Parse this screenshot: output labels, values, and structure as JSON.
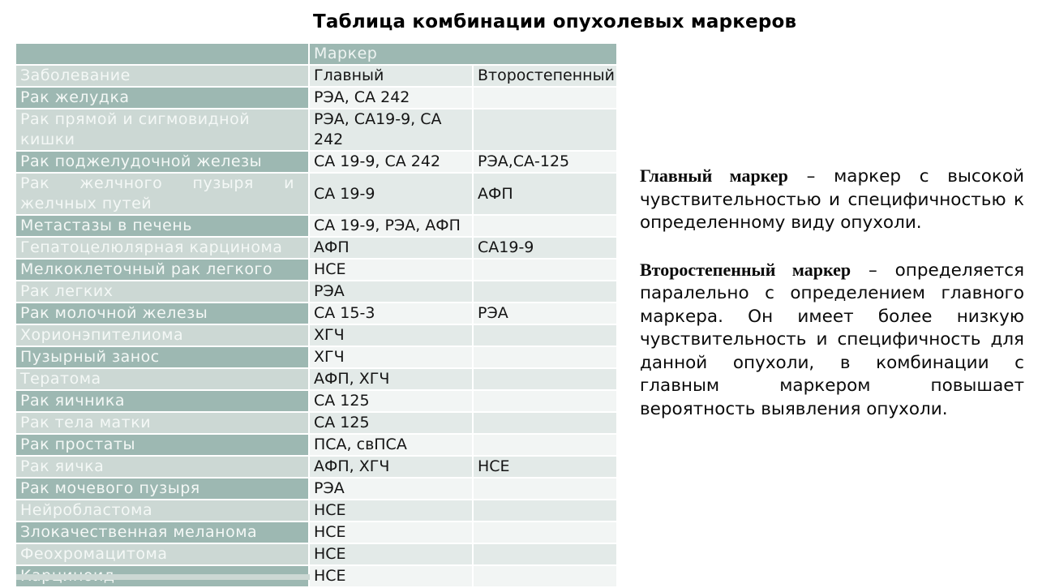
{
  "title": "Таблица комбинации опухолевых маркеров",
  "table": {
    "header_marker": "Маркер",
    "header_disease": "Заболевание",
    "header_primary": "Главный",
    "header_secondary": "Второстепенный",
    "rows": [
      {
        "disease": "Рак желудка",
        "primary": "РЭА, СА 242",
        "secondary": ""
      },
      {
        "disease": "Рак прямой и сигмовидной кишки",
        "primary": "РЭА, СА19-9, СА 242",
        "secondary": ""
      },
      {
        "disease": "Рак поджелудочной железы",
        "primary": "СА 19-9, СА 242",
        "secondary": "РЭА,СА-125"
      },
      {
        "disease": "Рак желчного пузыря и желчных путей",
        "primary": "СА 19-9",
        "secondary": "АФП"
      },
      {
        "disease": "Метастазы в печень",
        "primary": "СА 19-9, РЭА, АФП",
        "secondary": ""
      },
      {
        "disease": "Гепатоцелюлярная карцинома",
        "primary": "АФП",
        "secondary": "СА19-9"
      },
      {
        "disease": "Мелкоклеточный рак легкого",
        "primary": "НСЕ",
        "secondary": ""
      },
      {
        "disease": "Рак легких",
        "primary": "РЭА",
        "secondary": ""
      },
      {
        "disease": "Рак молочной железы",
        "primary": "СА 15-3",
        "secondary": "РЭА"
      },
      {
        "disease": "Хорионэпителиома",
        "primary": "ХГЧ",
        "secondary": ""
      },
      {
        "disease": "Пузырный занос",
        "primary": "ХГЧ",
        "secondary": ""
      },
      {
        "disease": "Тератома",
        "primary": "АФП, ХГЧ",
        "secondary": ""
      },
      {
        "disease": "Рак яичника",
        "primary": "СА 125",
        "secondary": ""
      },
      {
        "disease": "Рак тела матки",
        "primary": "СА 125",
        "secondary": ""
      },
      {
        "disease": "Рак простаты",
        "primary": "ПСА, свПСА",
        "secondary": ""
      },
      {
        "disease": "Рак яичка",
        "primary": "АФП, ХГЧ",
        "secondary": "НСЕ"
      },
      {
        "disease": "Рак мочевого пузыря",
        "primary": "РЭА",
        "secondary": ""
      },
      {
        "disease": "Нейробластома",
        "primary": "НСЕ",
        "secondary": ""
      },
      {
        "disease": "Злокачественная меланома",
        "primary": "НСЕ",
        "secondary": ""
      },
      {
        "disease": "Феохромацитома",
        "primary": "НСЕ",
        "secondary": ""
      },
      {
        "disease": "Карциноид",
        "primary": "НСЕ",
        "secondary": ""
      }
    ]
  },
  "notes": [
    {
      "lead": "Главный маркер",
      "separator": "–",
      "body": "маркер с высокой чувствительностью и специфичностью к определенному виду опухоли."
    },
    {
      "lead": "Второстепенный маркер",
      "separator": "–",
      "body": "определяется паралельно с определением главного маркера. Он имеет более низкую чувствительность и специфичность для данной опухоли, в комбинации с главным маркером повышает вероятность выявления опухоли."
    }
  ],
  "colors": {
    "sage_dark": "#9db8b2",
    "sage_light": "#ccd8d4",
    "cell_gray": "#e3eae8",
    "cell_white": "#f2f5f4"
  }
}
